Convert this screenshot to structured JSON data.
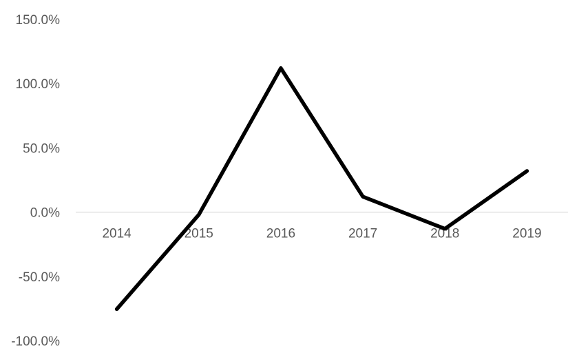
{
  "chart_data": {
    "type": "line",
    "title": "",
    "xlabel": "",
    "ylabel": "",
    "categories": [
      "2014",
      "2015",
      "2016",
      "2017",
      "2018",
      "2019"
    ],
    "series": [
      {
        "values": [
          -75.5,
          -2.0,
          112.0,
          12.0,
          -13.0,
          32.0
        ],
        "color": "#000000"
      }
    ],
    "y_ticks": [
      "150.0%",
      "100.0%",
      "50.0%",
      "0.0%",
      "-50.0%",
      "-100.0%"
    ],
    "y_tick_values": [
      150,
      100,
      50,
      0,
      -50,
      -100
    ],
    "ylim": [
      -100,
      150
    ],
    "grid": false,
    "legend": "none",
    "colors": {
      "zero_line": "#d9d9d9",
      "tick_label": "#595959",
      "series": "#000000"
    }
  }
}
